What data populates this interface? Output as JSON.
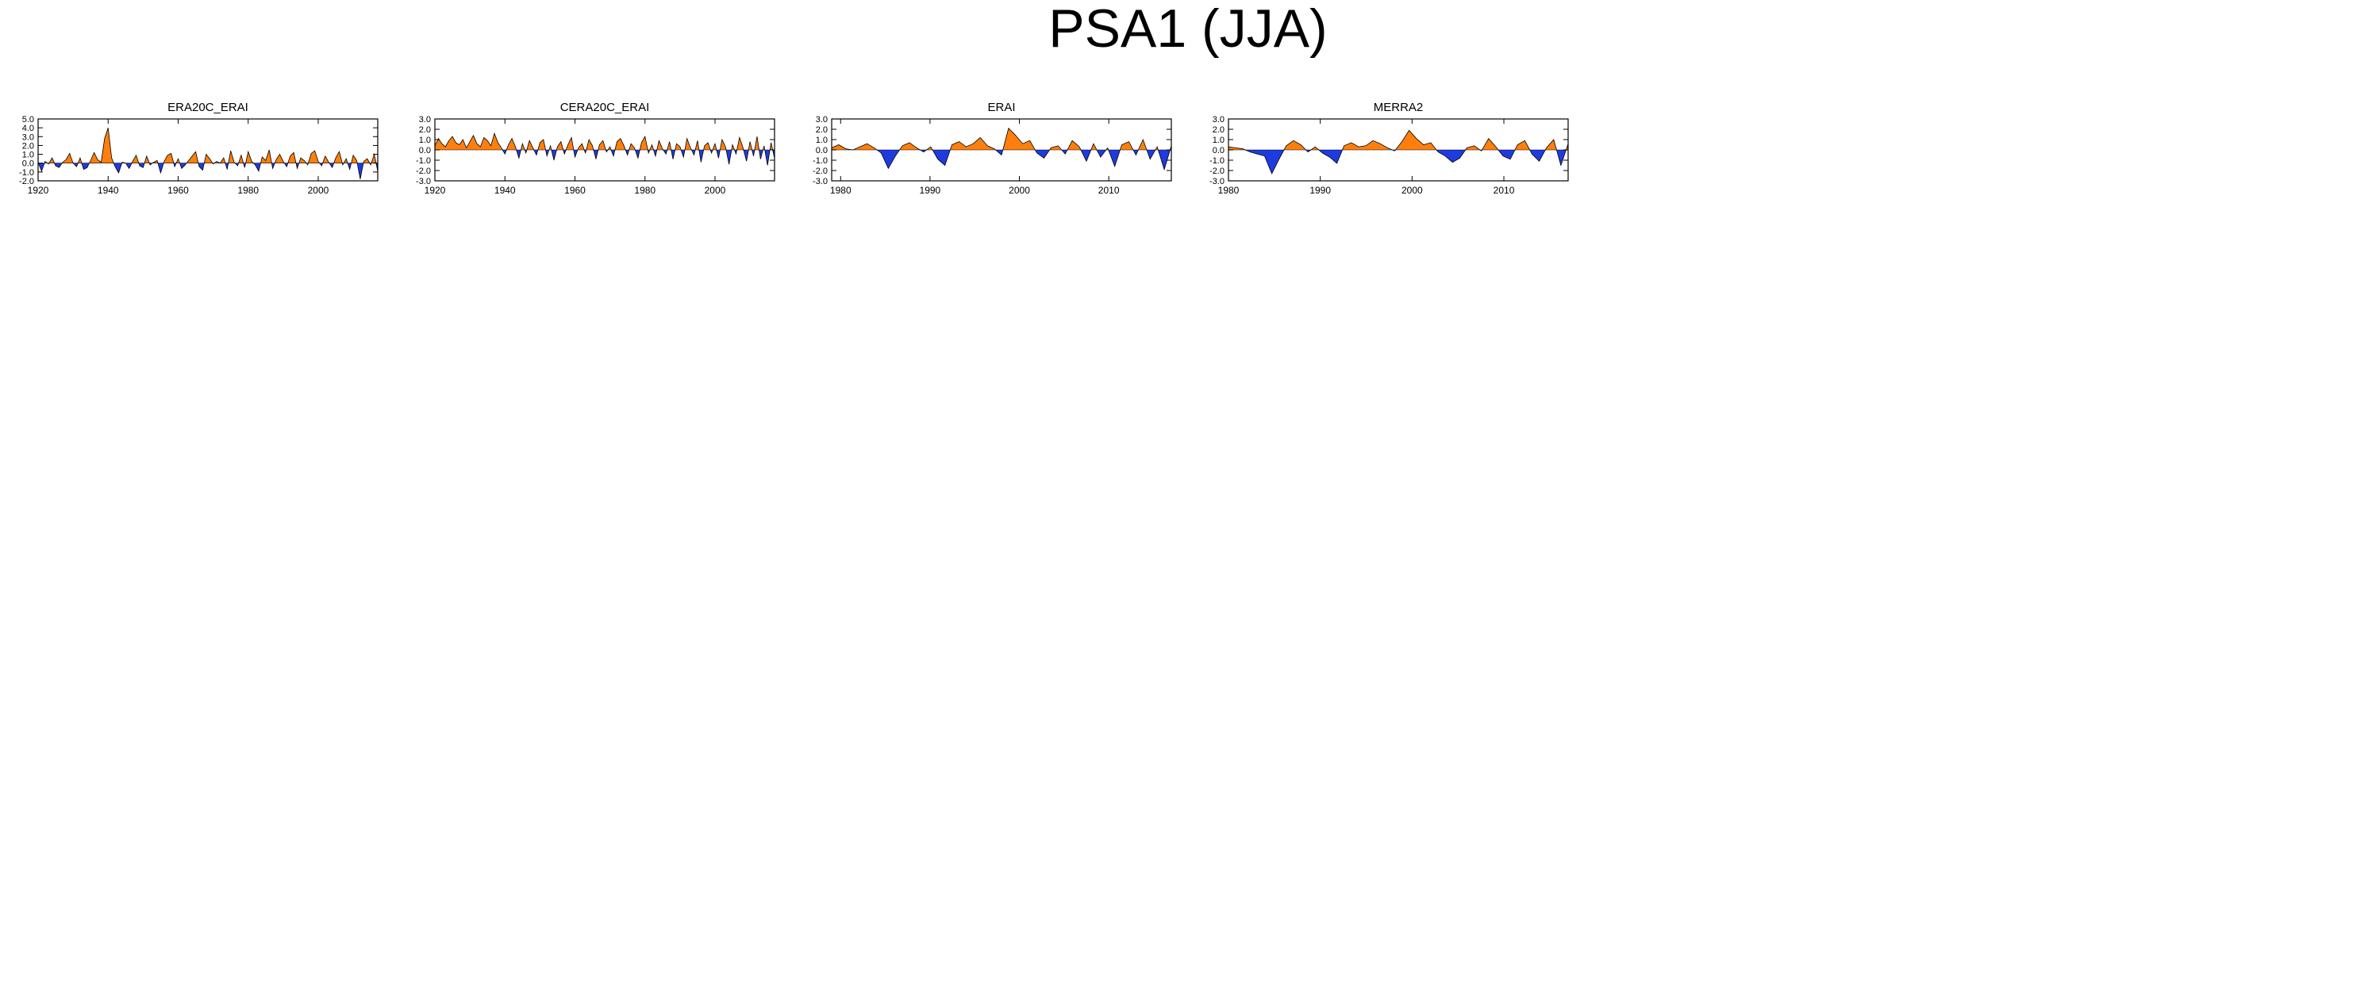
{
  "title": "PSA1 (JJA)",
  "colors": {
    "positive": "#ff7f0e",
    "negative": "#1f3be0",
    "axis": "#000000"
  },
  "chart_data": [
    {
      "type": "area",
      "title": "ERA20C_ERAI",
      "x_range": [
        1920,
        2017
      ],
      "x_ticks": [
        1920,
        1940,
        1960,
        1980,
        2000
      ],
      "y_ticks": [
        5.0,
        4.0,
        3.0,
        2.0,
        1.0,
        0.0,
        -1.0,
        -2.0
      ],
      "ylim": [
        -2.0,
        5.0
      ],
      "values": [
        0.1,
        -0.9,
        0.2,
        -0.1,
        0.6,
        -0.3,
        -0.5,
        0.1,
        0.4,
        1.1,
        0.0,
        -0.4,
        0.6,
        -0.7,
        -0.5,
        0.3,
        1.2,
        0.4,
        0.1,
        2.8,
        4.0,
        0.6,
        -0.4,
        -1.1,
        0.1,
        0.0,
        -0.6,
        0.2,
        0.9,
        -0.3,
        -0.5,
        0.8,
        -0.2,
        0.1,
        0.3,
        -1.1,
        0.2,
        0.9,
        1.1,
        -0.4,
        0.5,
        -0.6,
        -0.2,
        0.3,
        0.8,
        1.3,
        -0.4,
        -0.8,
        1.0,
        0.5,
        -0.1,
        0.2,
        0.0,
        0.6,
        -0.7,
        1.4,
        0.1,
        -0.3,
        0.9,
        -0.5,
        1.3,
        0.2,
        -0.2,
        -0.9,
        0.7,
        0.3,
        1.5,
        -0.6,
        0.4,
        1.0,
        0.2,
        -0.4,
        0.8,
        1.2,
        -0.6,
        0.6,
        0.3,
        -0.2,
        1.1,
        1.4,
        0.2,
        -0.3,
        0.8,
        0.1,
        -0.5,
        0.6,
        1.3,
        -0.2,
        0.5,
        -0.7,
        0.9,
        0.3,
        -1.8,
        0.2,
        0.5,
        -0.2,
        1.0,
        -0.9
      ]
    },
    {
      "type": "area",
      "title": "CERA20C_ERAI",
      "x_range": [
        1920,
        2017
      ],
      "x_ticks": [
        1920,
        1940,
        1960,
        1980,
        2000
      ],
      "y_ticks": [
        3.0,
        2.0,
        1.0,
        0.0,
        -1.0,
        -2.0,
        -3.0
      ],
      "ylim": [
        -3.0,
        3.0
      ],
      "values": [
        0.4,
        1.1,
        0.6,
        0.3,
        0.9,
        1.3,
        0.7,
        0.5,
        1.0,
        0.2,
        0.8,
        1.4,
        0.6,
        0.3,
        1.2,
        0.9,
        0.4,
        1.6,
        0.7,
        0.2,
        -0.4,
        0.5,
        1.1,
        0.3,
        -0.8,
        0.6,
        -0.3,
        0.9,
        0.2,
        -0.5,
        0.7,
        1.0,
        -0.6,
        0.4,
        -1.0,
        0.3,
        0.8,
        -0.4,
        0.5,
        1.2,
        -0.7,
        0.2,
        0.6,
        -0.3,
        1.0,
        0.4,
        -0.9,
        0.5,
        0.9,
        -0.2,
        0.3,
        -0.6,
        0.8,
        1.1,
        0.4,
        -0.5,
        0.6,
        0.2,
        -0.8,
        0.7,
        1.3,
        -0.3,
        0.5,
        -0.6,
        0.9,
        0.1,
        -0.4,
        0.8,
        -0.9,
        0.6,
        0.3,
        -0.7,
        1.1,
        0.2,
        -0.5,
        0.9,
        -1.2,
        0.4,
        0.7,
        -0.3,
        0.6,
        -0.8,
        1.0,
        0.3,
        -1.4,
        0.5,
        -0.4,
        1.2,
        0.2,
        -1.1,
        0.8,
        -0.6,
        1.3,
        -0.9,
        0.4,
        -1.5,
        0.7,
        -0.8
      ]
    },
    {
      "type": "area",
      "title": "ERAI",
      "x_range": [
        1979,
        2017
      ],
      "x_ticks": [
        1980,
        1990,
        2000,
        2010
      ],
      "y_ticks": [
        3.0,
        2.0,
        1.0,
        0.0,
        -1.0,
        -2.0,
        -3.0
      ],
      "ylim": [
        -3.0,
        3.0
      ],
      "values": [
        0.2,
        0.5,
        0.1,
        0.0,
        0.3,
        0.6,
        0.2,
        -0.3,
        -1.8,
        -0.6,
        0.4,
        0.7,
        0.2,
        -0.2,
        0.3,
        -0.9,
        -1.5,
        0.5,
        0.8,
        0.3,
        0.6,
        1.2,
        0.4,
        0.1,
        -0.5,
        2.1,
        1.4,
        0.6,
        0.9,
        -0.3,
        -0.8,
        0.2,
        0.4,
        -0.4,
        0.9,
        0.3,
        -1.1,
        0.6,
        -0.7,
        0.2,
        -1.6,
        0.5,
        0.8,
        -0.5,
        1.0,
        -0.9,
        0.3,
        -1.9,
        0.4
      ]
    },
    {
      "type": "area",
      "title": "MERRA2",
      "x_range": [
        1980,
        2017
      ],
      "x_ticks": [
        1980,
        1990,
        2000,
        2010
      ],
      "y_ticks": [
        3.0,
        2.0,
        1.0,
        0.0,
        -1.0,
        -2.0,
        -3.0
      ],
      "ylim": [
        -3.0,
        3.0
      ],
      "values": [
        0.3,
        0.2,
        0.1,
        -0.2,
        -0.4,
        -0.6,
        -2.3,
        -0.9,
        0.4,
        0.9,
        0.5,
        -0.2,
        0.3,
        -0.3,
        -0.7,
        -1.3,
        0.4,
        0.7,
        0.3,
        0.4,
        0.9,
        0.6,
        0.2,
        -0.1,
        0.8,
        1.9,
        1.1,
        0.5,
        0.7,
        -0.2,
        -0.6,
        -1.2,
        -0.8,
        0.2,
        0.4,
        -0.1,
        1.1,
        0.3,
        -0.6,
        -0.9,
        0.5,
        0.9,
        -0.4,
        -1.1,
        0.2,
        1.0,
        -1.5,
        0.6
      ]
    }
  ]
}
